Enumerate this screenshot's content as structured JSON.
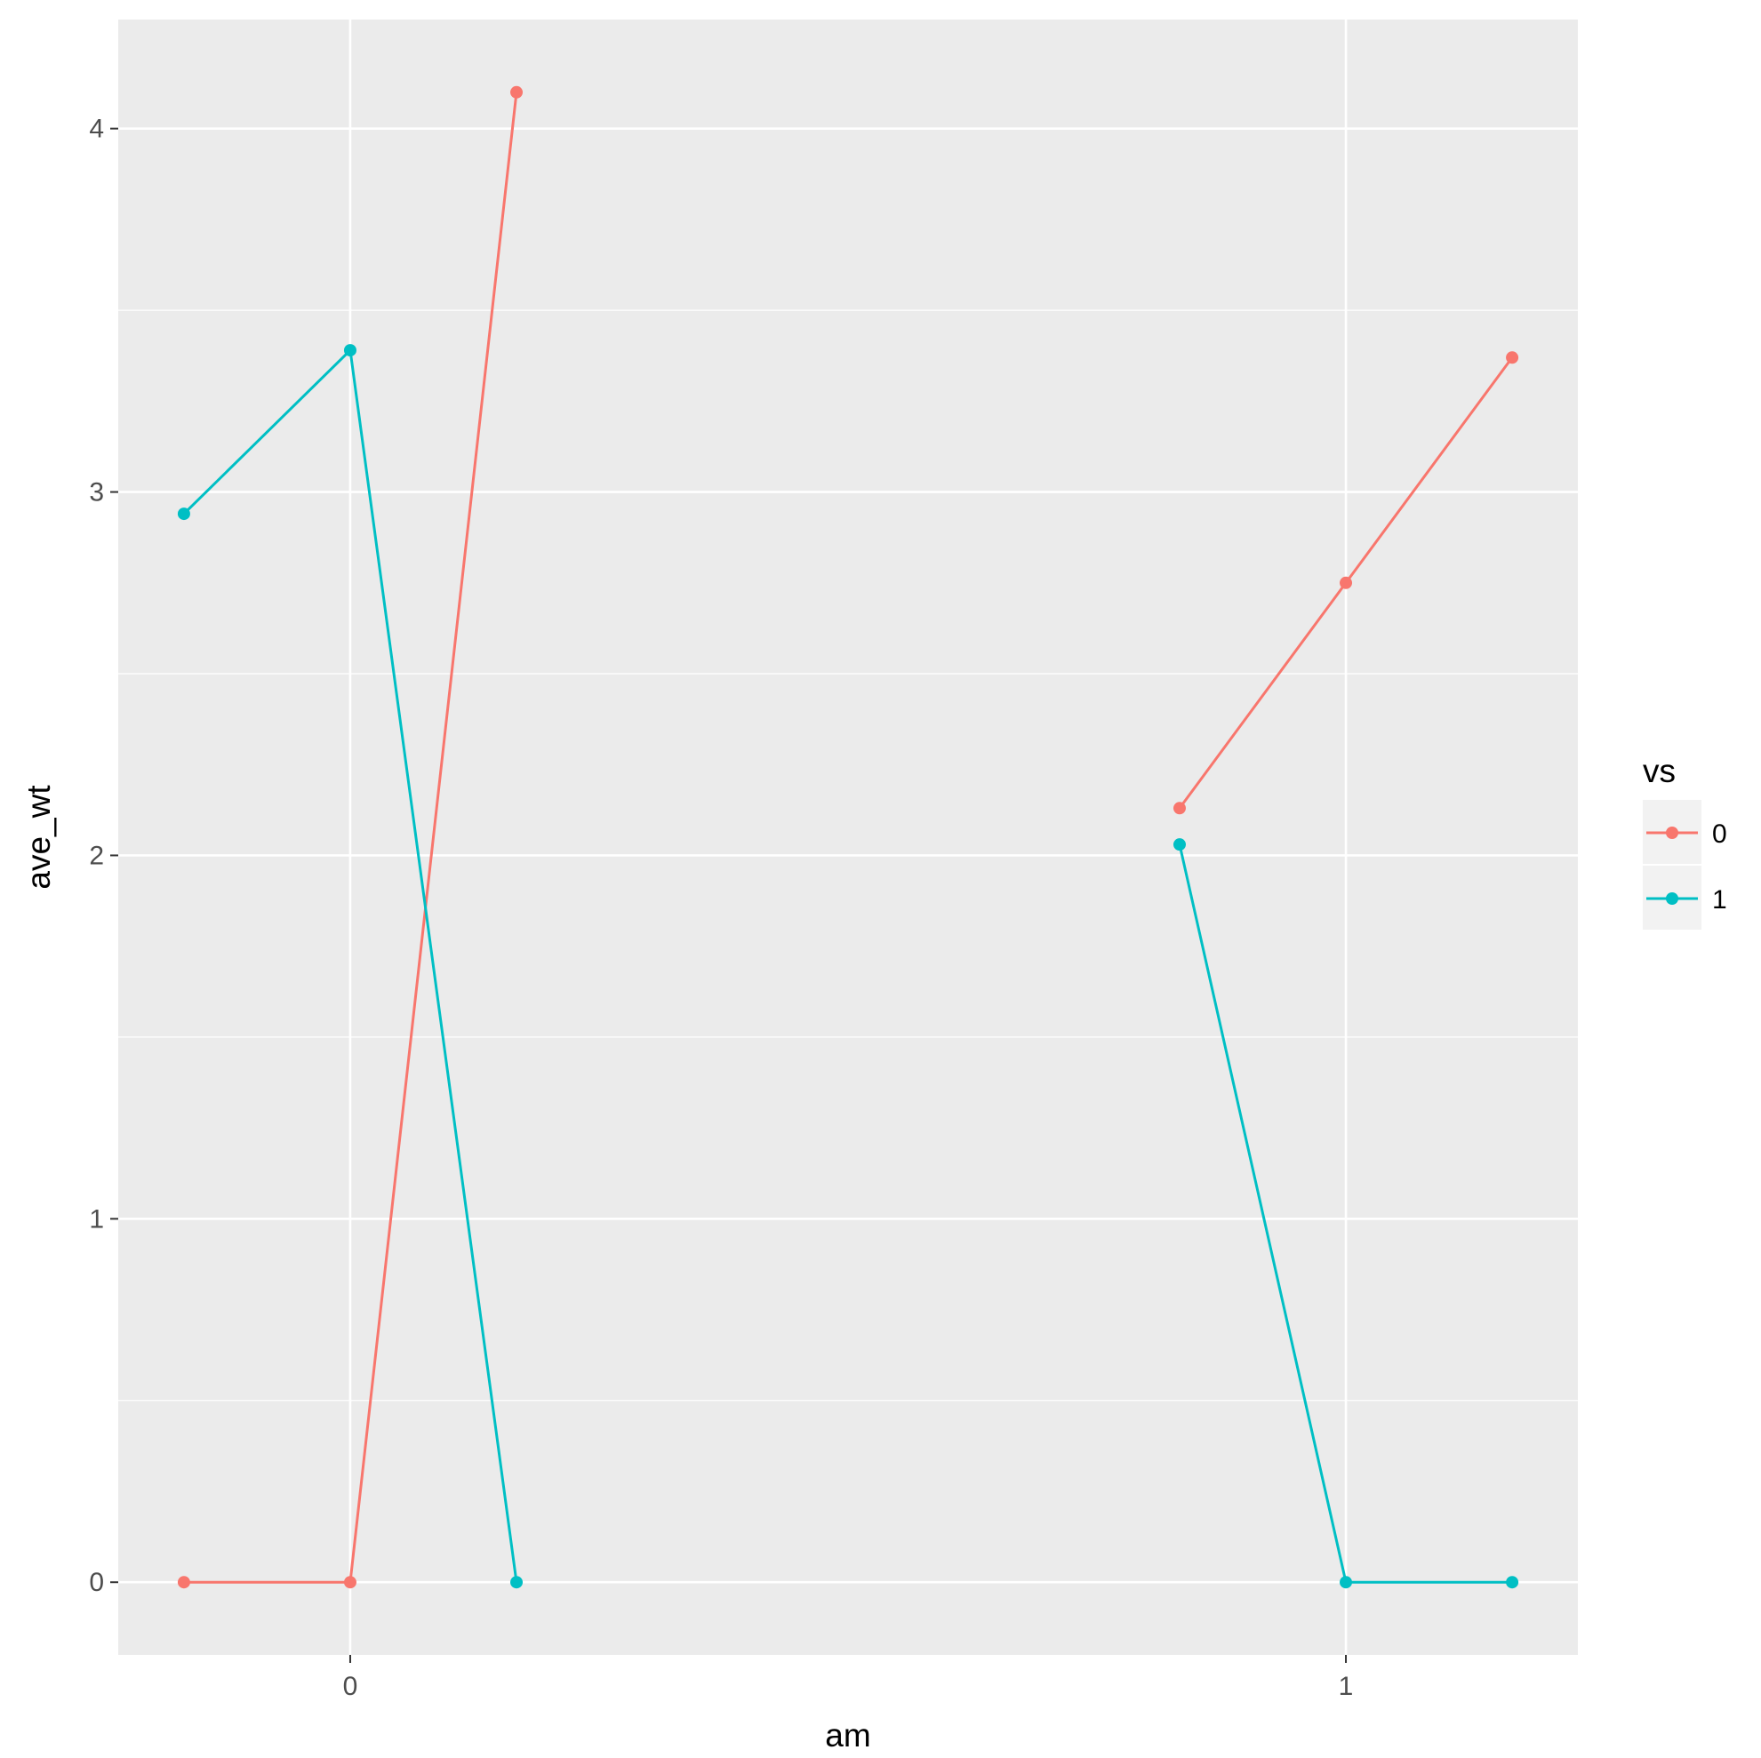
{
  "chart_data": {
    "type": "line",
    "xlabel": "am",
    "ylabel": "ave_wt",
    "x_ticks": [
      "0",
      "1"
    ],
    "y_ticks": [
      "0",
      "1",
      "2",
      "3",
      "4"
    ],
    "xlim": [
      -0.233,
      1.233
    ],
    "ylim": [
      -0.2,
      4.3
    ],
    "grid": true,
    "legend": {
      "title": "vs",
      "position": "right"
    },
    "series": [
      {
        "name": "0",
        "color": "#F8766D",
        "segments": [
          {
            "x": [
              -0.167,
              0.0,
              0.167
            ],
            "y": [
              0.0,
              0.0,
              4.1
            ]
          },
          {
            "x": [
              0.833,
              1.0,
              1.167
            ],
            "y": [
              2.13,
              2.75,
              3.37
            ]
          }
        ]
      },
      {
        "name": "1",
        "color": "#00BFC4",
        "segments": [
          {
            "x": [
              -0.167,
              0.0,
              0.167
            ],
            "y": [
              2.94,
              3.39,
              0.0
            ]
          },
          {
            "x": [
              0.833,
              1.0,
              1.167
            ],
            "y": [
              2.03,
              0.0,
              0.0
            ]
          }
        ]
      }
    ]
  }
}
